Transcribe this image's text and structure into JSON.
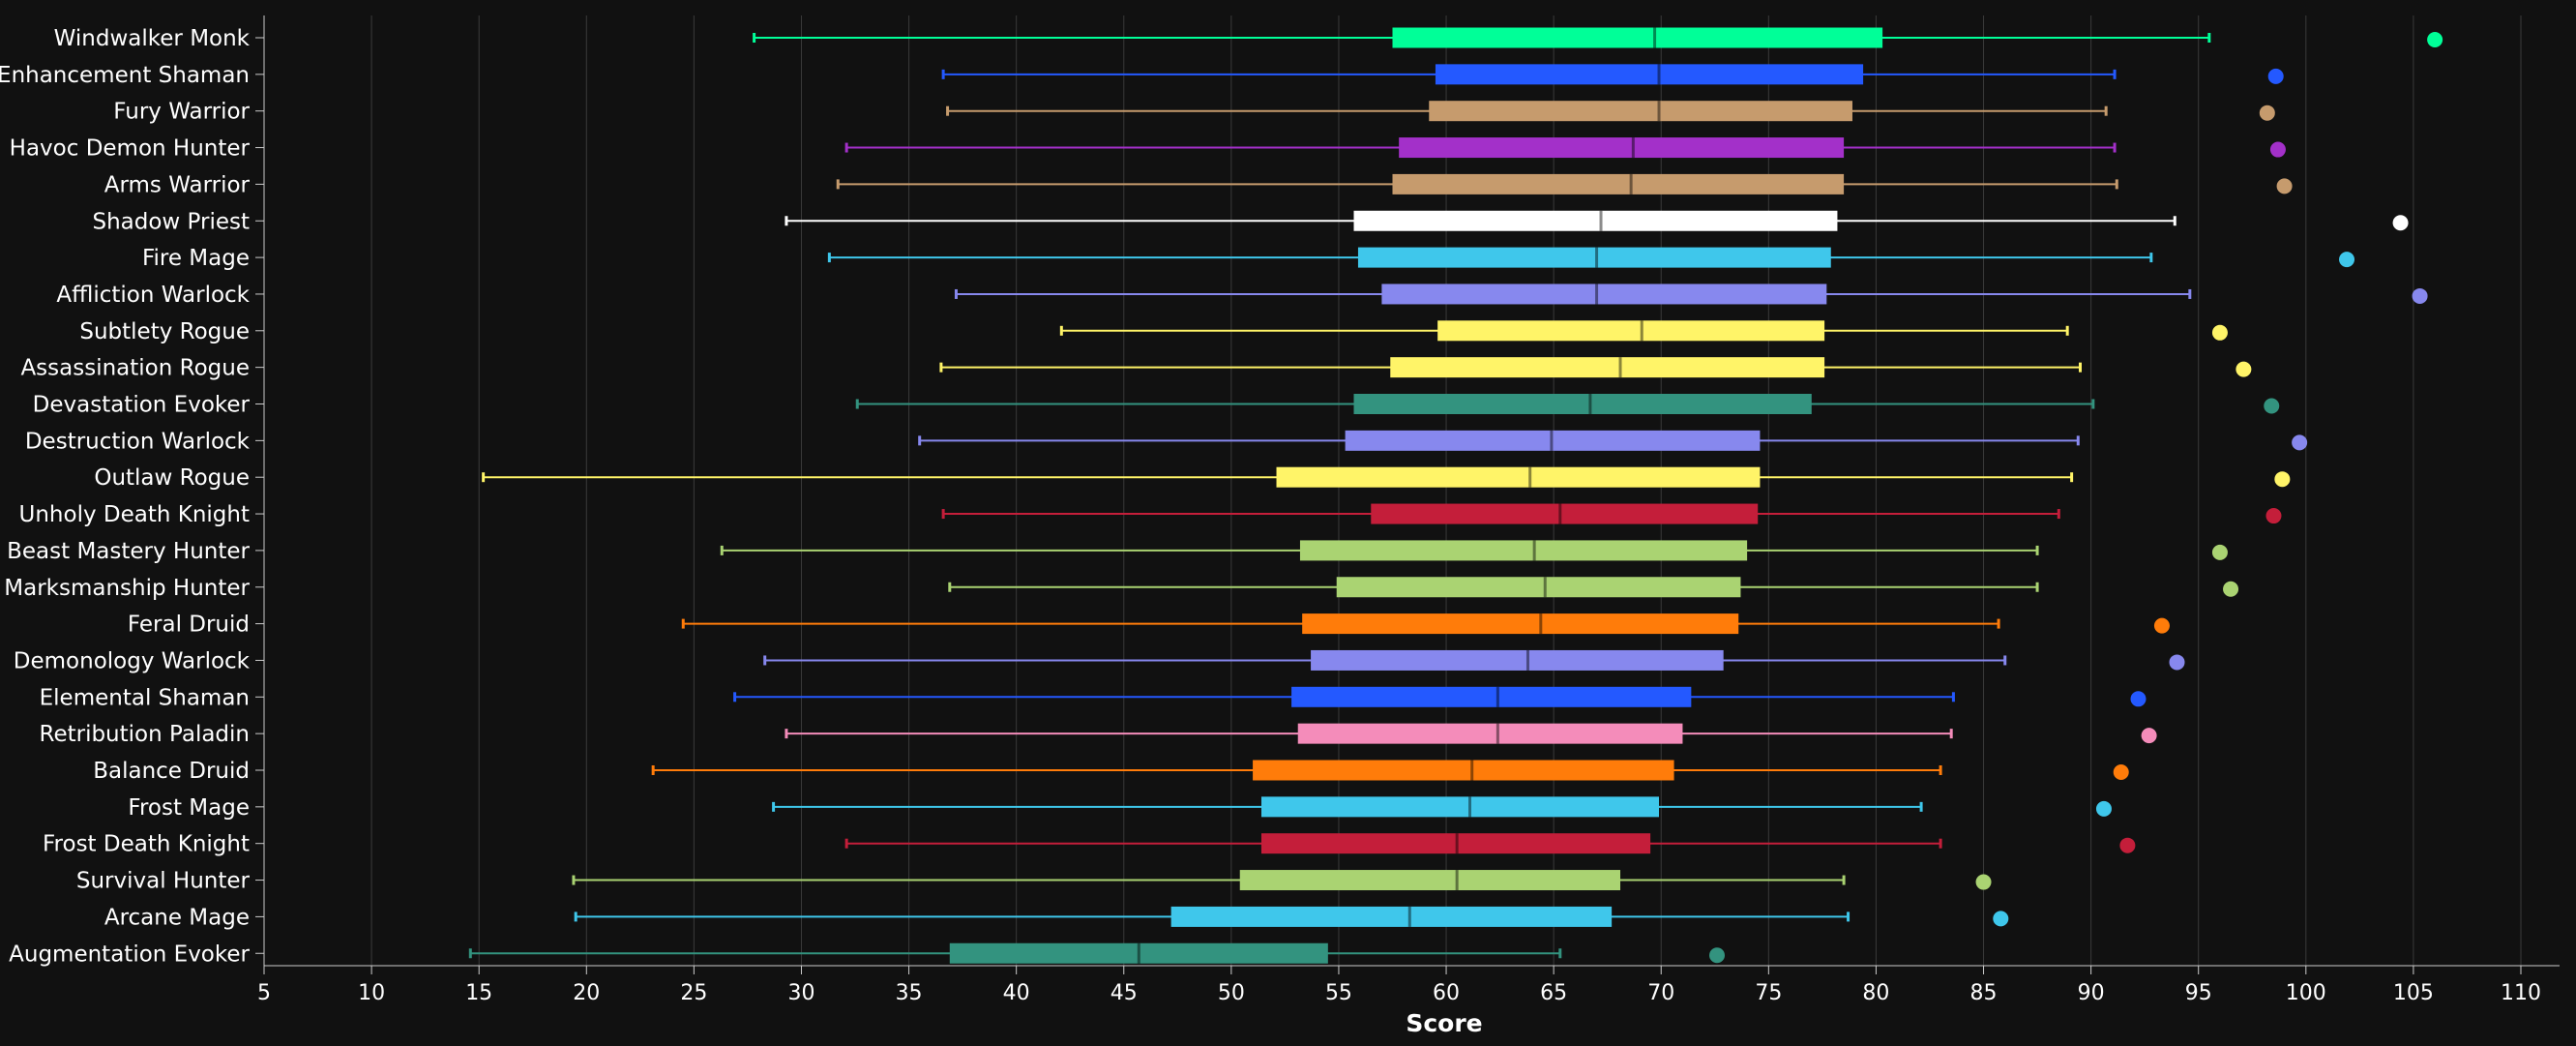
{
  "chart_data": {
    "type": "boxplot",
    "xlabel": "Score",
    "ylabel": "",
    "xlim": [
      5,
      112
    ],
    "x_ticks": [
      5,
      10,
      15,
      20,
      25,
      30,
      35,
      40,
      45,
      50,
      55,
      60,
      65,
      70,
      75,
      80,
      85,
      90,
      95,
      100,
      105,
      110
    ],
    "grid": "vertical",
    "background": "#111111",
    "series": [
      {
        "name": "Windwalker Monk",
        "color": "#00ff98",
        "min": 27.8,
        "q1": 57.5,
        "median": 69.7,
        "q3": 80.3,
        "max": 95.5,
        "outlier": 106.0
      },
      {
        "name": "Enhancement Shaman",
        "color": "#2459ff",
        "min": 36.6,
        "q1": 59.5,
        "median": 69.9,
        "q3": 79.4,
        "max": 91.1,
        "outlier": 98.6
      },
      {
        "name": "Fury Warrior",
        "color": "#c69b6d",
        "min": 36.8,
        "q1": 59.2,
        "median": 69.9,
        "q3": 78.9,
        "max": 90.7,
        "outlier": 98.2
      },
      {
        "name": "Havoc Demon Hunter",
        "color": "#a330c9",
        "min": 32.1,
        "q1": 57.8,
        "median": 68.7,
        "q3": 78.5,
        "max": 91.1,
        "outlier": 98.7
      },
      {
        "name": "Arms Warrior",
        "color": "#c69b6d",
        "min": 31.7,
        "q1": 57.5,
        "median": 68.6,
        "q3": 78.5,
        "max": 91.2,
        "outlier": 99.0
      },
      {
        "name": "Shadow Priest",
        "color": "#ffffff",
        "min": 29.3,
        "q1": 55.7,
        "median": 67.2,
        "q3": 78.2,
        "max": 93.9,
        "outlier": 104.4
      },
      {
        "name": "Fire Mage",
        "color": "#3fc7eb",
        "min": 31.3,
        "q1": 55.9,
        "median": 67.0,
        "q3": 77.9,
        "max": 92.8,
        "outlier": 101.9
      },
      {
        "name": "Affliction Warlock",
        "color": "#8788ee",
        "min": 37.2,
        "q1": 57.0,
        "median": 67.0,
        "q3": 77.7,
        "max": 94.6,
        "outlier": 105.3
      },
      {
        "name": "Subtlety Rogue",
        "color": "#fff468",
        "min": 42.1,
        "q1": 59.6,
        "median": 69.1,
        "q3": 77.6,
        "max": 88.9,
        "outlier": 96.0
      },
      {
        "name": "Assassination Rogue",
        "color": "#fff468",
        "min": 36.5,
        "q1": 57.4,
        "median": 68.1,
        "q3": 77.6,
        "max": 89.5,
        "outlier": 97.1
      },
      {
        "name": "Devastation Evoker",
        "color": "#33937f",
        "min": 32.6,
        "q1": 55.7,
        "median": 66.7,
        "q3": 77.0,
        "max": 90.1,
        "outlier": 98.4
      },
      {
        "name": "Destruction Warlock",
        "color": "#8788ee",
        "min": 35.5,
        "q1": 55.3,
        "median": 64.9,
        "q3": 74.6,
        "max": 89.4,
        "outlier": 99.7
      },
      {
        "name": "Outlaw Rogue",
        "color": "#fff468",
        "min": 15.2,
        "q1": 52.1,
        "median": 63.9,
        "q3": 74.6,
        "max": 89.1,
        "outlier": 98.9
      },
      {
        "name": "Unholy Death Knight",
        "color": "#c41e3a",
        "min": 36.6,
        "q1": 56.5,
        "median": 65.3,
        "q3": 74.5,
        "max": 88.5,
        "outlier": 98.5
      },
      {
        "name": "Beast Mastery Hunter",
        "color": "#aad372",
        "min": 26.3,
        "q1": 53.2,
        "median": 64.1,
        "q3": 74.0,
        "max": 87.5,
        "outlier": 96.0
      },
      {
        "name": "Marksmanship Hunter",
        "color": "#aad372",
        "min": 36.9,
        "q1": 54.9,
        "median": 64.6,
        "q3": 73.7,
        "max": 87.5,
        "outlier": 96.5
      },
      {
        "name": "Feral Druid",
        "color": "#ff7c0a",
        "min": 24.5,
        "q1": 53.3,
        "median": 64.4,
        "q3": 73.6,
        "max": 85.7,
        "outlier": 93.3
      },
      {
        "name": "Demonology Warlock",
        "color": "#8788ee",
        "min": 28.3,
        "q1": 53.7,
        "median": 63.8,
        "q3": 72.9,
        "max": 86.0,
        "outlier": 94.0
      },
      {
        "name": "Elemental Shaman",
        "color": "#2459ff",
        "min": 26.9,
        "q1": 52.8,
        "median": 62.4,
        "q3": 71.4,
        "max": 83.6,
        "outlier": 92.2
      },
      {
        "name": "Retribution Paladin",
        "color": "#f48cba",
        "min": 29.3,
        "q1": 53.1,
        "median": 62.4,
        "q3": 71.0,
        "max": 83.5,
        "outlier": 92.7
      },
      {
        "name": "Balance Druid",
        "color": "#ff7c0a",
        "min": 23.1,
        "q1": 51.0,
        "median": 61.2,
        "q3": 70.6,
        "max": 83.0,
        "outlier": 91.4
      },
      {
        "name": "Frost Mage",
        "color": "#3fc7eb",
        "min": 28.7,
        "q1": 51.4,
        "median": 61.1,
        "q3": 69.9,
        "max": 82.1,
        "outlier": 90.6
      },
      {
        "name": "Frost Death Knight",
        "color": "#c41e3a",
        "min": 32.1,
        "q1": 51.4,
        "median": 60.5,
        "q3": 69.5,
        "max": 83.0,
        "outlier": 91.7
      },
      {
        "name": "Survival Hunter",
        "color": "#aad372",
        "min": 19.4,
        "q1": 50.4,
        "median": 60.5,
        "q3": 68.1,
        "max": 78.5,
        "outlier": 85.0
      },
      {
        "name": "Arcane Mage",
        "color": "#3fc7eb",
        "min": 19.5,
        "q1": 47.2,
        "median": 58.3,
        "q3": 67.7,
        "max": 78.7,
        "outlier": 85.8
      },
      {
        "name": "Augmentation Evoker",
        "color": "#33937f",
        "min": 14.6,
        "q1": 36.9,
        "median": 45.7,
        "q3": 54.5,
        "max": 65.3,
        "outlier": 72.6
      }
    ]
  }
}
